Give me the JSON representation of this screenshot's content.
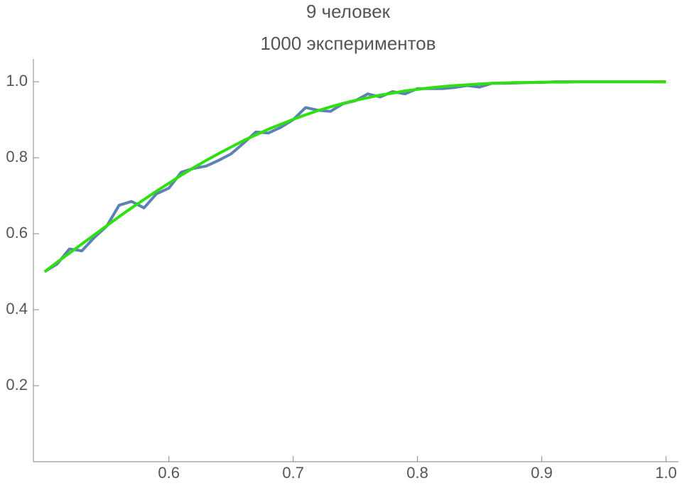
{
  "chart_data": {
    "type": "line",
    "title": "9 человек",
    "subtitle": "1000 экспериментов",
    "x": [
      0.5,
      0.51,
      0.52,
      0.53,
      0.54,
      0.55,
      0.56,
      0.57,
      0.58,
      0.59,
      0.6,
      0.61,
      0.62,
      0.63,
      0.64,
      0.65,
      0.66,
      0.67,
      0.68,
      0.69,
      0.7,
      0.71,
      0.72,
      0.73,
      0.74,
      0.75,
      0.76,
      0.77,
      0.78,
      0.79,
      0.8,
      0.81,
      0.82,
      0.83,
      0.84,
      0.85,
      0.86,
      0.87,
      0.88,
      0.89,
      0.9,
      0.91,
      0.92,
      0.93,
      0.94,
      0.95,
      0.96,
      0.97,
      0.98,
      0.99,
      1.0
    ],
    "series": [
      {
        "color": "#5e81b5",
        "values": [
          0.5,
          0.52,
          0.56,
          0.555,
          0.59,
          0.62,
          0.675,
          0.685,
          0.668,
          0.705,
          0.72,
          0.762,
          0.772,
          0.778,
          0.793,
          0.81,
          0.838,
          0.868,
          0.865,
          0.88,
          0.9,
          0.932,
          0.925,
          0.922,
          0.942,
          0.95,
          0.968,
          0.96,
          0.974,
          0.968,
          0.982,
          0.982,
          0.982,
          0.985,
          0.99,
          0.986,
          0.996,
          0.996,
          0.997,
          0.998,
          0.998,
          1,
          1,
          1,
          1,
          1,
          1,
          1,
          1,
          1,
          1
        ]
      },
      {
        "color": "#e0201b",
        "values": [
          null,
          null,
          null,
          null,
          null,
          null,
          null,
          null,
          null,
          null,
          null,
          null,
          null,
          null,
          null,
          null,
          null,
          null,
          null,
          null,
          null,
          null,
          null,
          null,
          null,
          null,
          null,
          null,
          null,
          null,
          null,
          null,
          null,
          null,
          null,
          null,
          null,
          null,
          null,
          null,
          null,
          null,
          null,
          null,
          null,
          null,
          null,
          null,
          null,
          1,
          1
        ]
      },
      {
        "color": "#2ee010",
        "values": [
          0.5,
          0.525,
          0.549,
          0.573,
          0.597,
          0.621,
          0.645,
          0.668,
          0.69,
          0.712,
          0.733,
          0.754,
          0.774,
          0.793,
          0.811,
          0.828,
          0.845,
          0.86,
          0.875,
          0.888,
          0.901,
          0.913,
          0.924,
          0.934,
          0.943,
          0.951,
          0.958,
          0.965,
          0.97,
          0.976,
          0.98,
          0.984,
          0.987,
          0.99,
          0.992,
          0.994,
          0.996,
          0.997,
          0.998,
          0.998,
          0.999,
          0.999,
          0.999,
          1,
          1,
          1,
          1,
          1,
          1,
          1,
          1
        ]
      }
    ],
    "xlim": [
      0.491,
      1.01
    ],
    "ylim": [
      0,
      1.06
    ],
    "xticks": [
      0.6,
      0.7,
      0.8,
      0.9,
      {
        "value": 1,
        "label": "1.0"
      }
    ],
    "yticks": [
      0.2,
      0.4,
      0.6,
      0.8,
      {
        "value": 1,
        "label": "1.0"
      }
    ]
  }
}
